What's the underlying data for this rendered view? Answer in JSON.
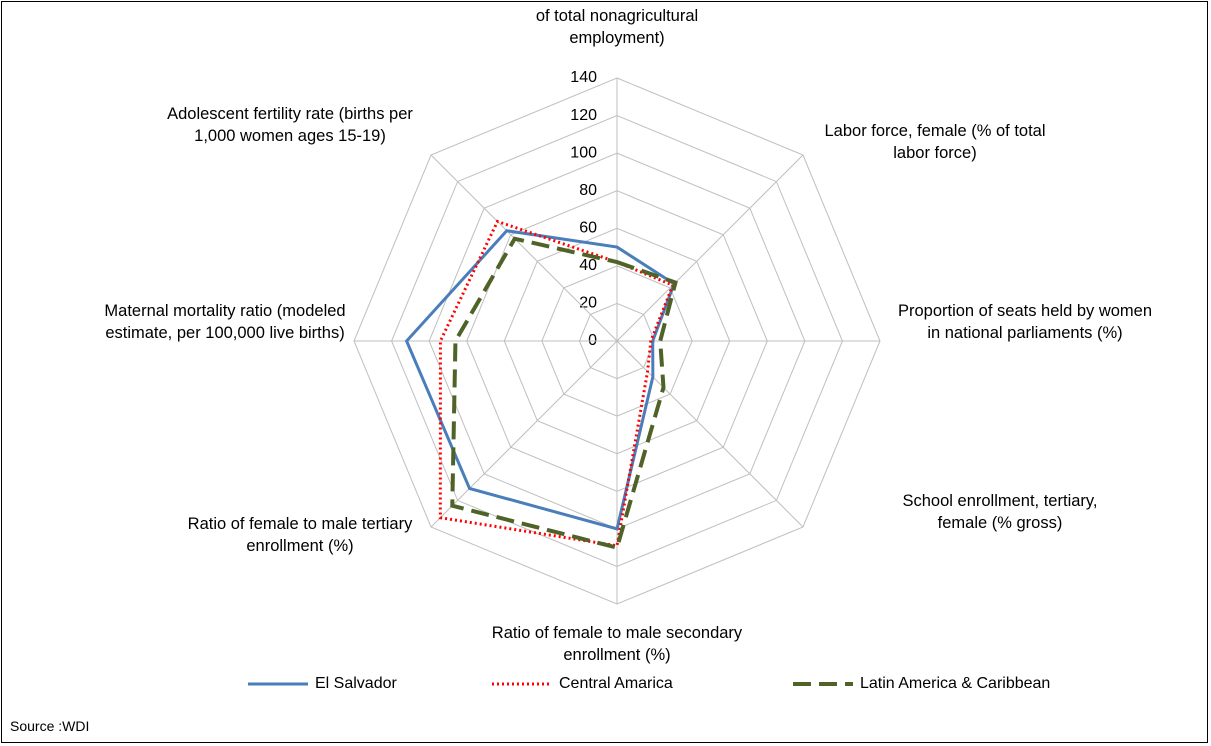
{
  "chart_data": {
    "type": "radar",
    "categories": [
      "of total nonagricultural employment)",
      "Labor force, female (% of total labor force)",
      "Proportion of seats held by women in national parliaments (%)",
      "School enrollment, tertiary, female (% gross)",
      "Ratio of female to male secondary enrollment (%)",
      "Ratio of female to male tertiary enrollment (%)",
      "Maternal mortality ratio (modeled estimate, per 100,000 live births)",
      "Adolescent fertility rate (births per 1,000 women ages 15-19)"
    ],
    "series": [
      {
        "name": "El Salvador",
        "color": "#4a7ebb",
        "dash": "solid",
        "values": [
          50,
          43,
          19,
          27,
          100,
          111,
          112,
          83
        ]
      },
      {
        "name": "Central Amarica",
        "color": "#ff0000",
        "dash": "dotted",
        "values": [
          42,
          42,
          18,
          23,
          109,
          133,
          94,
          90
        ]
      },
      {
        "name": "Latin America & Caribbean",
        "color": "#4f6228",
        "dash": "dashed",
        "values": [
          42,
          44,
          23,
          35,
          110,
          124,
          86,
          77
        ]
      }
    ],
    "rlim": [
      0,
      140
    ],
    "rticks": [
      0,
      20,
      40,
      60,
      80,
      100,
      120,
      140
    ],
    "grid": true,
    "source": "Source :WDI"
  }
}
